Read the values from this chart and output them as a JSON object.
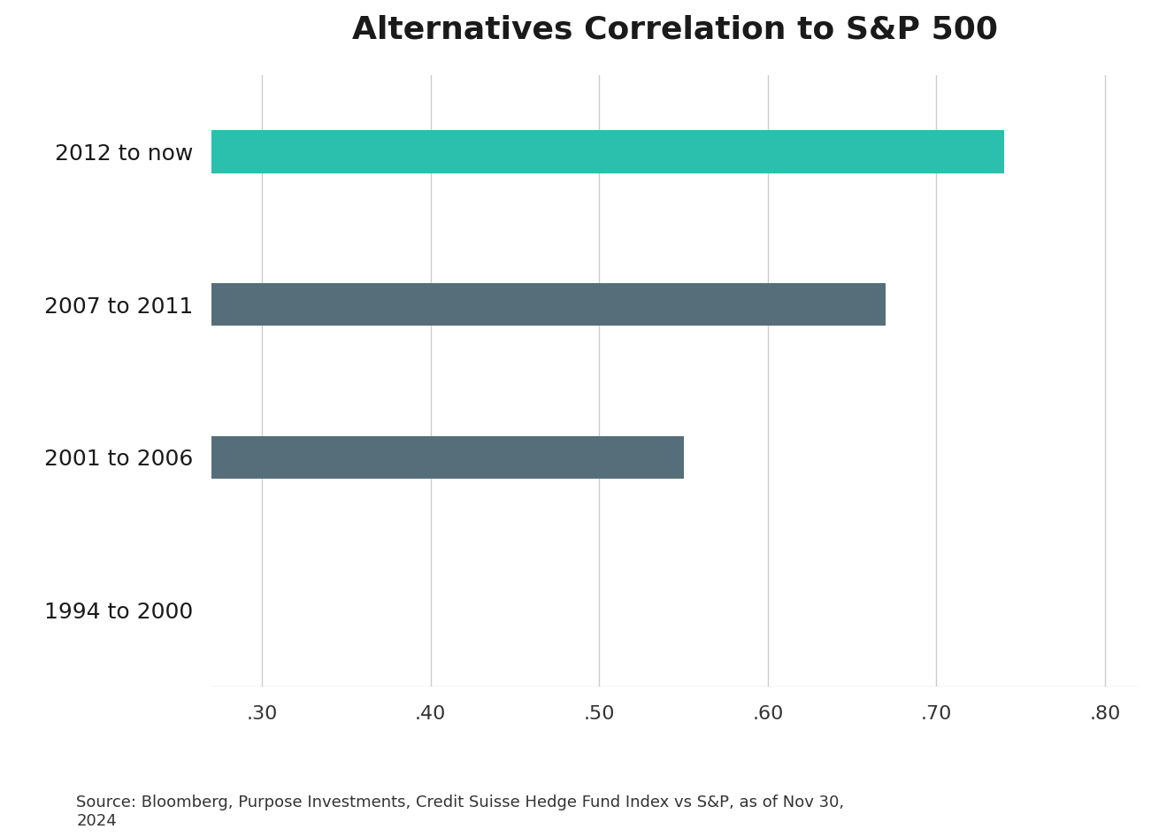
{
  "title": "Alternatives Correlation to S&P 500",
  "categories": [
    "2012 to now",
    "2007 to 2011",
    "2001 to 2006",
    "1994 to 2000"
  ],
  "values": [
    0.74,
    0.67,
    0.55,
    0.0
  ],
  "bar_colors": [
    "#2bbfad",
    "#566e7a",
    "#566e7a",
    "#566e7a"
  ],
  "xlim": [
    0.27,
    0.82
  ],
  "xticks": [
    0.3,
    0.4,
    0.5,
    0.6,
    0.7,
    0.8
  ],
  "xticklabels": [
    ".30",
    ".40",
    ".50",
    ".60",
    ".70",
    ".80"
  ],
  "background_color": "#ffffff",
  "title_fontsize": 26,
  "bar_height": 0.28,
  "source_text": "Source: Bloomberg, Purpose Investments, Credit Suisse Hedge Fund Index vs S&P, as of Nov 30,\n2024",
  "grid_color": "#cccccc",
  "tick_label_color": "#333333",
  "ylabel_color": "#1a1a1a",
  "source_fontsize": 13,
  "ytick_fontsize": 18,
  "xtick_fontsize": 16
}
